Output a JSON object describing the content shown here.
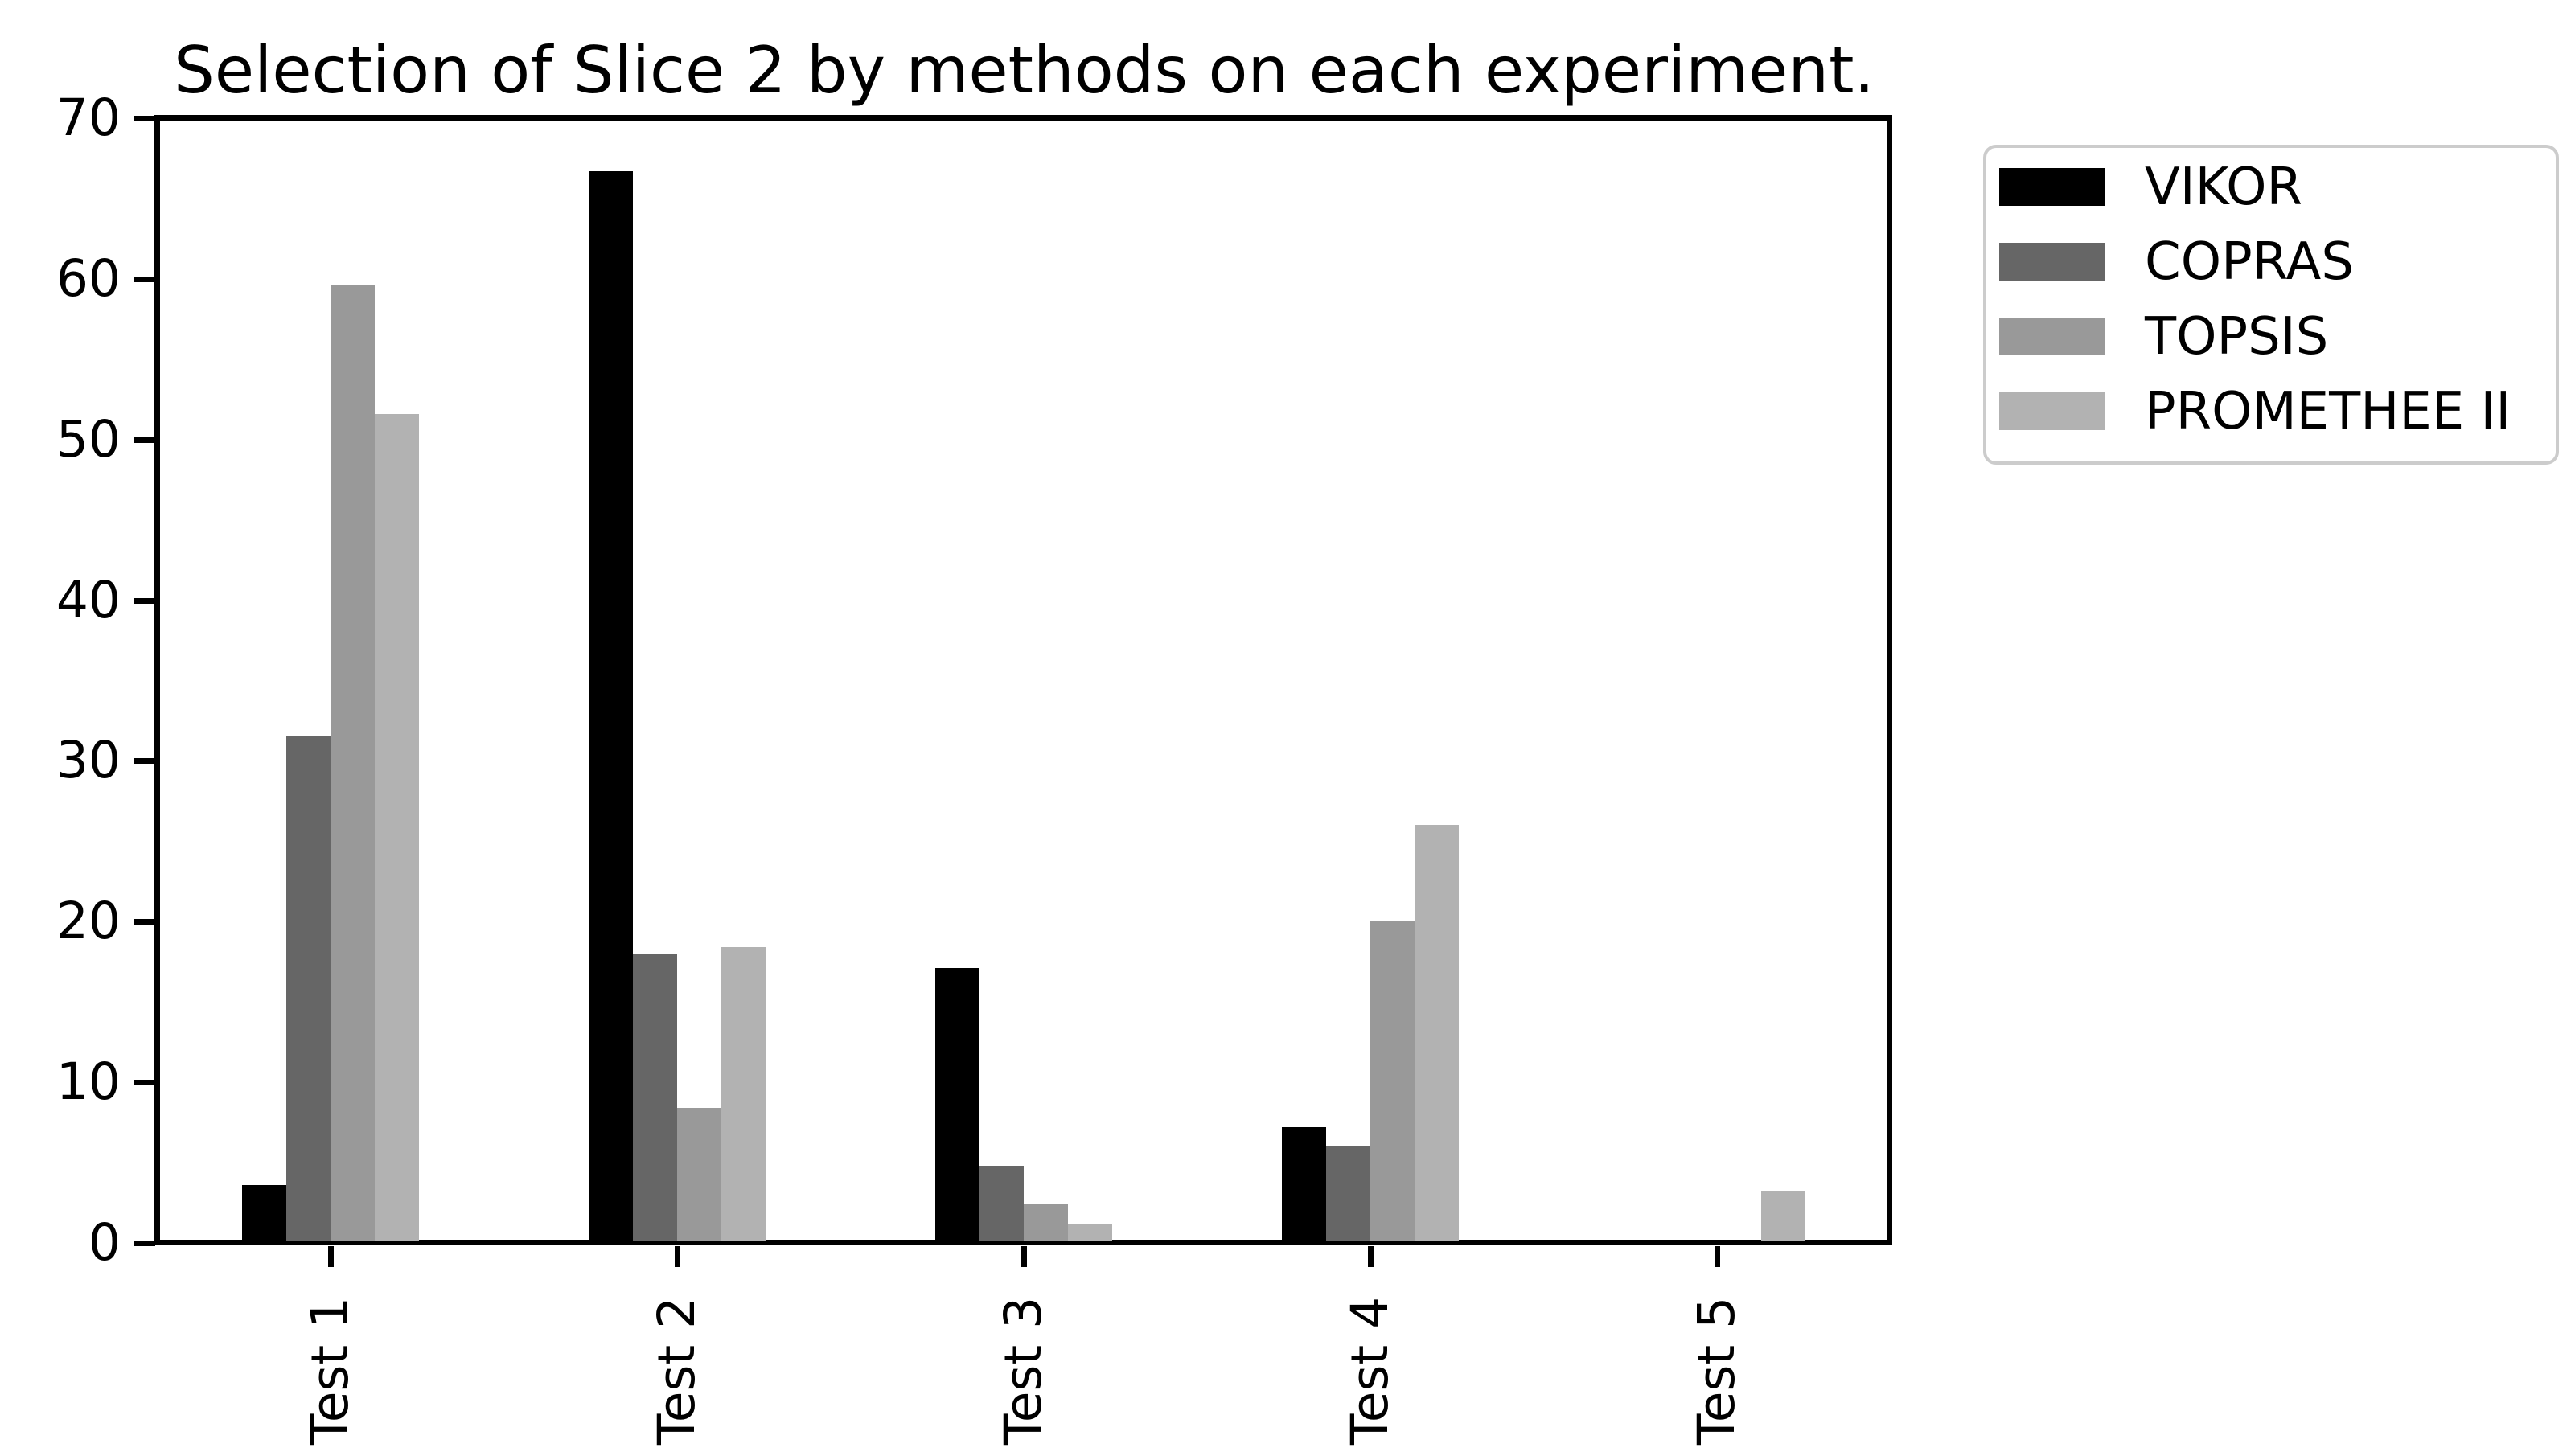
{
  "chart_data": {
    "type": "bar",
    "title": "Selection of Slice 2 by methods on each experiment.",
    "categories": [
      "Test 1",
      "Test 2",
      "Test 3",
      "Test 4",
      "Test 5"
    ],
    "series": [
      {
        "name": "VIKOR",
        "color": "#000000",
        "values": [
          3.6,
          66.7,
          17.1,
          7.2,
          0
        ]
      },
      {
        "name": "COPRAS",
        "color": "#666666",
        "values": [
          31.5,
          18.0,
          4.8,
          6.0,
          0
        ]
      },
      {
        "name": "TOPSIS",
        "color": "#999999",
        "values": [
          59.6,
          8.4,
          2.4,
          20.0,
          0
        ]
      },
      {
        "name": "PROMETHEE II",
        "color": "#b2b2b2",
        "values": [
          51.6,
          18.4,
          1.2,
          26.0,
          3.2
        ]
      }
    ],
    "xlabel": "",
    "ylabel": "",
    "ylim": [
      0,
      70
    ],
    "yticks": [
      0,
      10,
      20,
      30,
      40,
      50,
      60,
      70
    ],
    "xtick_rotation": 90,
    "grid": false,
    "legend_position": "upper right outside",
    "axis_color": "#000000",
    "background_color": "#ffffff"
  }
}
